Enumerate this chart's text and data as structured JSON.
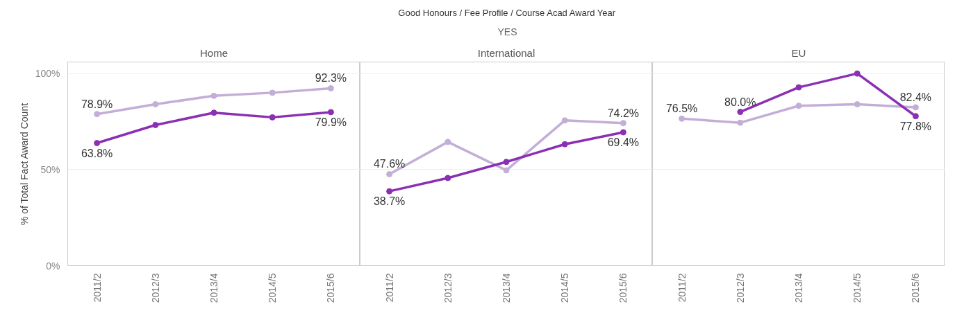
{
  "chart_data": [
    {
      "type": "line",
      "title": "Home",
      "ylabel": "% of Total Fact Award Count",
      "annotations": [
        "Good Honours / Fee Profile / Course Acad Award Year",
        "YES"
      ],
      "categories": [
        "2011/2",
        "2012/3",
        "2013/4",
        "2014/5",
        "2015/6"
      ],
      "ylim": [
        0,
        106
      ],
      "yticks": [
        {
          "value": 0,
          "label": "0%"
        },
        {
          "value": 50,
          "label": "50%"
        },
        {
          "value": 100,
          "label": "100%"
        }
      ],
      "grid": "y",
      "marker": "circle",
      "series": [
        {
          "color": "#c3aed8",
          "values": [
            78.9,
            84.0,
            88.4,
            90.0,
            92.3
          ],
          "value_labels": [
            "78.9%",
            null,
            null,
            null,
            "92.3%"
          ]
        },
        {
          "color": "#8b2fb5",
          "values": [
            63.8,
            73.2,
            79.6,
            77.2,
            79.9
          ],
          "value_labels": [
            "63.8%",
            null,
            null,
            null,
            "79.9%"
          ]
        }
      ]
    },
    {
      "type": "line",
      "title": "International",
      "tick_labels": "x",
      "categories": [
        "2011/2",
        "2012/3",
        "2013/4",
        "2014/5",
        "2015/6"
      ],
      "ylim": [
        0,
        106
      ],
      "yticks": [
        {
          "value": 0,
          "label": null
        },
        {
          "value": 50,
          "label": null
        },
        {
          "value": 100,
          "label": null
        }
      ],
      "grid": "y",
      "marker": "circle",
      "series": [
        {
          "color": "#c3aed8",
          "values": [
            47.6,
            64.4,
            49.6,
            75.6,
            74.2
          ],
          "value_labels": [
            "47.6%",
            null,
            null,
            null,
            "74.2%"
          ]
        },
        {
          "color": "#8b2fb5",
          "values": [
            38.7,
            45.6,
            54.0,
            63.2,
            69.4
          ],
          "value_labels": [
            "38.7%",
            null,
            null,
            null,
            "69.4%"
          ]
        }
      ]
    },
    {
      "type": "line",
      "title": "EU",
      "tick_labels": "x",
      "categories": [
        "2011/2",
        "2012/3",
        "2013/4",
        "2014/5",
        "2015/6"
      ],
      "ylim": [
        0,
        106
      ],
      "yticks": [
        {
          "value": 0,
          "label": null
        },
        {
          "value": 50,
          "label": null
        },
        {
          "value": 100,
          "label": null
        }
      ],
      "grid": "y",
      "marker": "circle",
      "series": [
        {
          "color": "#c3aed8",
          "values": [
            76.5,
            74.4,
            83.2,
            84.0,
            82.4
          ],
          "value_labels": [
            "76.5%",
            null,
            null,
            null,
            "82.4%"
          ]
        },
        {
          "color": "#8b2fb5",
          "values": [
            null,
            80.0,
            92.8,
            100,
            77.8
          ],
          "value_labels": [
            null,
            "80.0%",
            null,
            null,
            "77.8%"
          ]
        }
      ]
    }
  ]
}
